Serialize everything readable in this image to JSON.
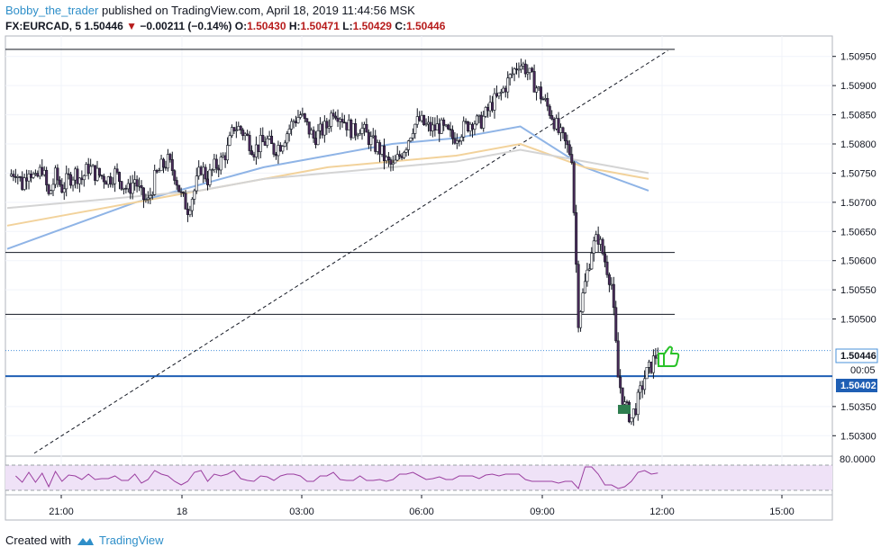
{
  "header": {
    "author": "Bobby_the_trader",
    "published_text": " published on TradingView.com, April 18, 2019 11:44:56 MSK",
    "symbol": "FX:EURCAD, 5",
    "price": "1.50446",
    "arrow": "▼",
    "change": "−0.00211 (−0.14%)",
    "o_label": "O:",
    "o_value": "1.50430",
    "h_label": "H:",
    "h_value": "1.50471",
    "l_label": "L:",
    "l_value": "1.50429",
    "c_label": "C:",
    "c_value": "1.50446"
  },
  "footer": {
    "created_with": "Created with",
    "brand": "TradingView"
  },
  "price_axis": {
    "ticks": [
      "1.50950",
      "1.50900",
      "1.50850",
      "1.50800",
      "1.50750",
      "1.50700",
      "1.50650",
      "1.50600",
      "1.50550",
      "1.50500",
      "1.50350",
      "1.50300"
    ],
    "current_price_label": "1.50446",
    "countdown_label": "00:05",
    "hline_price_label": "1.50402"
  },
  "rsi_axis": {
    "tick": "80.0000"
  },
  "time_axis": {
    "ticks": [
      "21:00",
      "18",
      "03:00",
      "06:00",
      "09:00",
      "12:00",
      "15:00"
    ]
  },
  "colors": {
    "up_candle": "#ffffff",
    "down_candle": "#4a2a5a",
    "wick": "#131722",
    "ma_blue": "#8fb4e6",
    "ma_orange": "#f2d29b",
    "ma_gray": "#d4d4d4",
    "hline_blue": "#1f5fb4",
    "rsi_line": "#9b3fa0",
    "rsi_band": "#efe2f7",
    "thumb": "#29c229",
    "marker": "#2e7d4f"
  },
  "chart_data": {
    "type": "candlestick",
    "symbol": "FX:EURCAD",
    "interval": "5",
    "ylim": [
      1.50265,
      1.50985
    ],
    "x_ticks": [
      "21:00",
      "18",
      "03:00",
      "06:00",
      "09:00",
      "12:00",
      "15:00"
    ],
    "horizontal_lines": [
      1.50962,
      1.50614,
      1.50508,
      1.50402
    ],
    "current_price": 1.50446,
    "trendline": {
      "from": [
        0,
        1.5027
      ],
      "to": [
        172,
        1.5096
      ]
    },
    "close_path": [
      [
        0,
        1.50745
      ],
      [
        3,
        1.50755
      ],
      [
        6,
        1.5073
      ],
      [
        9,
        1.5076
      ],
      [
        12,
        1.50735
      ],
      [
        15,
        1.5076
      ],
      [
        18,
        1.5071
      ],
      [
        21,
        1.50745
      ],
      [
        24,
        1.50725
      ],
      [
        27,
        1.5074
      ],
      [
        30,
        1.5075
      ],
      [
        33,
        1.5074
      ],
      [
        36,
        1.5076
      ],
      [
        39,
        1.5075
      ],
      [
        42,
        1.50745
      ],
      [
        45,
        1.5074
      ],
      [
        48,
        1.5075
      ],
      [
        51,
        1.50735
      ],
      [
        54,
        1.5072
      ],
      [
        57,
        1.5074
      ],
      [
        60,
        1.5071
      ],
      [
        63,
        1.507
      ],
      [
        66,
        1.5074
      ],
      [
        69,
        1.5076
      ],
      [
        72,
        1.5077
      ],
      [
        75,
        1.5075
      ],
      [
        78,
        1.5071
      ],
      [
        81,
        1.5069
      ],
      [
        84,
        1.5072
      ],
      [
        87,
        1.5076
      ],
      [
        90,
        1.5074
      ],
      [
        93,
        1.5076
      ],
      [
        96,
        1.5077
      ],
      [
        99,
        1.5079
      ],
      [
        102,
        1.5083
      ],
      [
        105,
        1.50825
      ],
      [
        108,
        1.5081
      ],
      [
        111,
        1.5079
      ],
      [
        114,
        1.508
      ],
      [
        117,
        1.50805
      ],
      [
        120,
        1.5079
      ],
      [
        123,
        1.508
      ],
      [
        126,
        1.5082
      ],
      [
        129,
        1.5084
      ],
      [
        132,
        1.5085
      ],
      [
        135,
        1.5083
      ],
      [
        138,
        1.5081
      ],
      [
        141,
        1.5082
      ],
      [
        144,
        1.5083
      ],
      [
        147,
        1.5086
      ],
      [
        150,
        1.5085
      ],
      [
        153,
        1.50835
      ],
      [
        156,
        1.5082
      ],
      [
        159,
        1.5083
      ],
      [
        162,
        1.50815
      ],
      [
        165,
        1.508
      ],
      [
        168,
        1.5079
      ],
      [
        171,
        1.5077
      ],
      [
        174,
        1.5076
      ],
      [
        177,
        1.5078
      ],
      [
        180,
        1.508
      ],
      [
        183,
        1.5083
      ],
      [
        186,
        1.5084
      ],
      [
        189,
        1.5083
      ],
      [
        192,
        1.50825
      ],
      [
        195,
        1.5083
      ],
      [
        198,
        1.5082
      ],
      [
        201,
        1.5081
      ],
      [
        204,
        1.5082
      ],
      [
        207,
        1.5083
      ],
      [
        210,
        1.5084
      ],
      [
        213,
        1.50835
      ],
      [
        216,
        1.5085
      ],
      [
        219,
        1.5087
      ],
      [
        222,
        1.5088
      ],
      [
        225,
        1.509
      ],
      [
        228,
        1.5092
      ],
      [
        231,
        1.5094
      ],
      [
        234,
        1.5093
      ],
      [
        237,
        1.5091
      ],
      [
        240,
        1.5089
      ],
      [
        243,
        1.5087
      ],
      [
        246,
        1.5085
      ],
      [
        249,
        1.5082
      ],
      [
        252,
        1.508
      ],
      [
        255,
        1.5078
      ],
      [
        258,
        1.505
      ],
      [
        261,
        1.5056
      ],
      [
        264,
        1.5062
      ],
      [
        267,
        1.5064
      ],
      [
        270,
        1.506
      ],
      [
        273,
        1.5056
      ],
      [
        276,
        1.504
      ],
      [
        279,
        1.5035
      ],
      [
        282,
        1.5033
      ],
      [
        285,
        1.5036
      ],
      [
        288,
        1.504
      ],
      [
        291,
        1.5042
      ],
      [
        294,
        1.50446
      ]
    ],
    "series": [
      {
        "name": "",
        "color": "#8fb4e6",
        "values": [
          1.5062,
          1.5066,
          1.507,
          1.5073,
          1.5076,
          1.5078,
          1.508,
          1.5081,
          1.5083,
          1.5076,
          1.5072
        ]
      },
      {
        "name": "",
        "color": "#f2d29b",
        "values": [
          1.5066,
          1.5068,
          1.507,
          1.5072,
          1.5074,
          1.5076,
          1.5077,
          1.5078,
          1.508,
          1.5076,
          1.5074
        ]
      },
      {
        "name": "",
        "color": "#d4d4d4",
        "values": [
          1.5069,
          1.507,
          1.5071,
          1.5072,
          1.5074,
          1.5075,
          1.5076,
          1.5077,
          1.5079,
          1.5077,
          1.5075
        ]
      }
    ],
    "rsi": {
      "upper": 80,
      "lower": 20
    }
  }
}
